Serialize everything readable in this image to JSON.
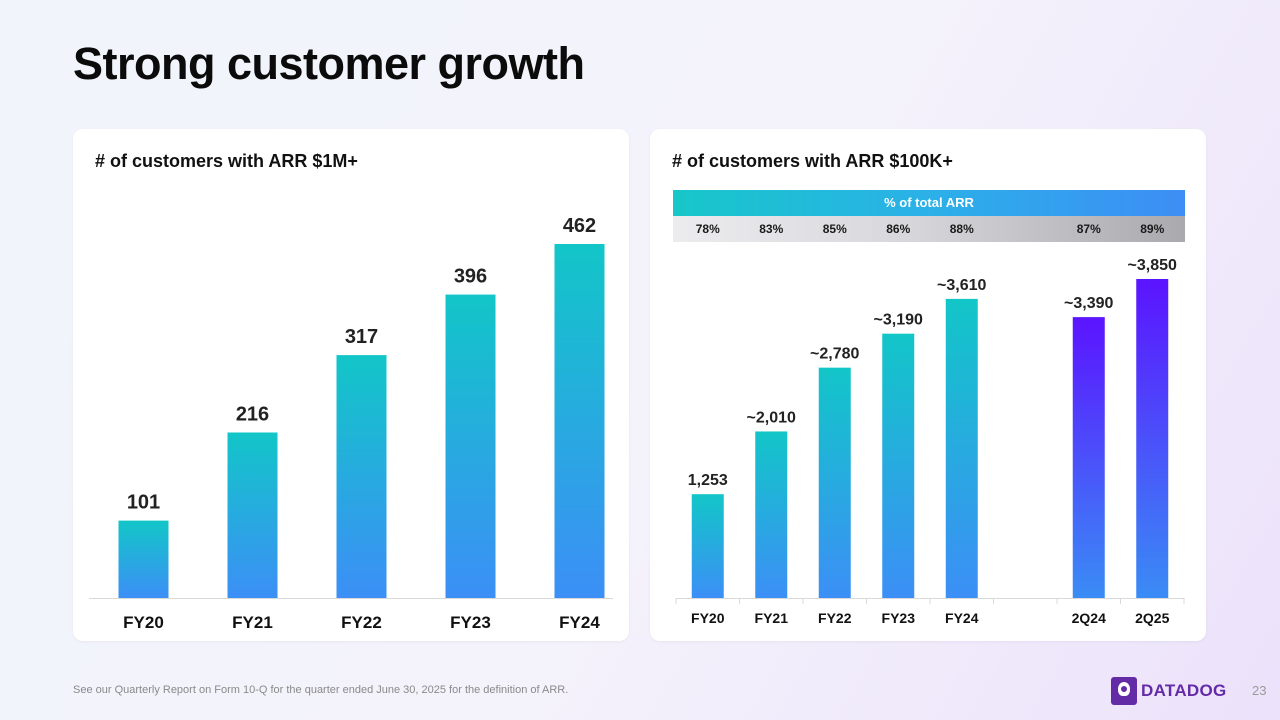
{
  "title": "Strong customer growth",
  "footer": "See our Quarterly Report on Form 10-Q for the quarter ended June 30, 2025 for the definition of ARR.",
  "brand": "DATADOG",
  "page_number": "23",
  "colors": {
    "bar_top": "#12c6c8",
    "bar_bottom": "#3c8ff6",
    "quarter_top": "#5b14ff",
    "quarter_bottom": "#3a8cf5",
    "brand": "#632ca6"
  },
  "chart_data": [
    {
      "type": "bar",
      "title": "# of customers with ARR $1M+",
      "categories": [
        "FY20",
        "FY21",
        "FY22",
        "FY23",
        "FY24"
      ],
      "values": [
        101,
        216,
        317,
        396,
        462
      ],
      "value_labels": [
        "101",
        "216",
        "317",
        "396",
        "462"
      ],
      "ylim": [
        0,
        462
      ],
      "xlabel": "",
      "ylabel": ""
    },
    {
      "type": "bar",
      "title": "# of customers with ARR $100K+",
      "categories": [
        "FY20",
        "FY21",
        "FY22",
        "FY23",
        "FY24",
        "",
        "2Q24",
        "2Q25"
      ],
      "values": [
        1253,
        2010,
        2780,
        3190,
        3610,
        null,
        3390,
        3850
      ],
      "value_labels": [
        "1,253",
        "~2,010",
        "~2,780",
        "~3,190",
        "~3,610",
        "",
        "~3,390",
        "~3,850"
      ],
      "series_type": [
        "annual",
        "annual",
        "annual",
        "annual",
        "annual",
        "gap",
        "quarter",
        "quarter"
      ],
      "ylim": [
        0,
        3850
      ],
      "arr_header": "% of total ARR",
      "pct_of_total_arr": [
        "78%",
        "83%",
        "85%",
        "86%",
        "88%",
        "",
        "87%",
        "89%"
      ],
      "xlabel": "",
      "ylabel": ""
    }
  ]
}
